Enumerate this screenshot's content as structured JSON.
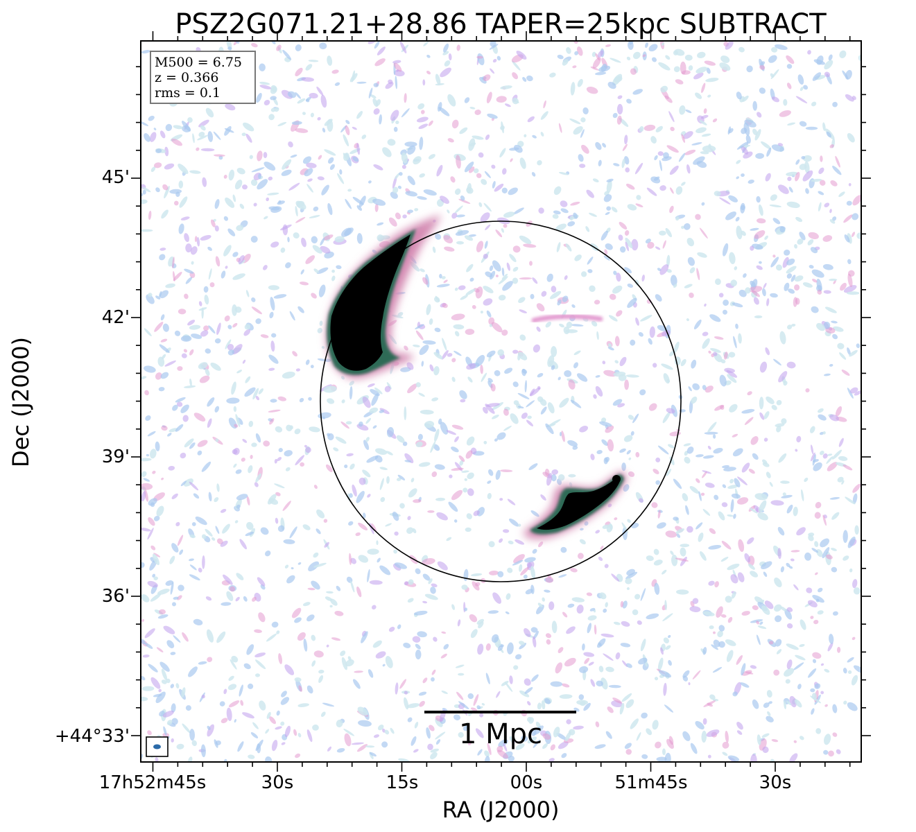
{
  "chart_data": {
    "type": "heatmap",
    "title": "PSZ2G071.21+28.86 TAPER=25kpc SUBTRACT",
    "xlabel": "RA (J2000)",
    "ylabel": "Dec (J2000)",
    "x_ticks": [
      {
        "label": "17h52m45s",
        "ra_s": 45
      },
      {
        "label": "30s",
        "ra_s": 30
      },
      {
        "label": "15s",
        "ra_s": 15
      },
      {
        "label": "00s",
        "ra_s": 0
      },
      {
        "label": "51m45s",
        "ra_s": -15
      },
      {
        "label": "30s",
        "ra_s": -30
      }
    ],
    "y_ticks": [
      {
        "label": "+44°33'",
        "dec_arcmin": 33
      },
      {
        "label": "36'",
        "dec_arcmin": 36
      },
      {
        "label": "39'",
        "dec_arcmin": 39
      },
      {
        "label": "42'",
        "dec_arcmin": 42
      },
      {
        "label": "45'",
        "dec_arcmin": 45
      }
    ],
    "info_box": [
      "M500 = 6.75",
      "z = 0.366",
      "rms = 0.1"
    ],
    "scalebar_label": "1 Mpc",
    "colors": {
      "noise_light": "#cfe8ee",
      "noise_mid": "#a9c9f0",
      "noise_violet": "#c4a6ee",
      "noise_pink": "#e39bd0",
      "source_core": "#000000",
      "source_edge": "#2e6b56",
      "source_halo": "#d48ab2",
      "circle": "#000000",
      "beam": "#2b6aa8"
    }
  }
}
